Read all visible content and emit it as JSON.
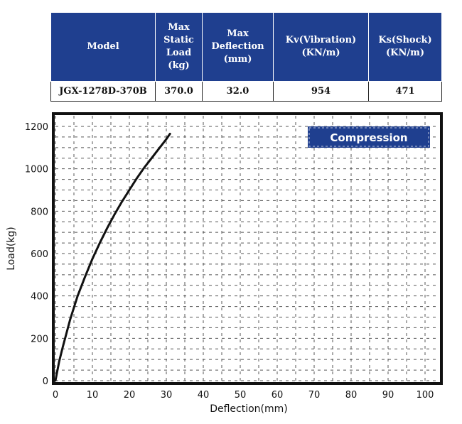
{
  "table": {
    "headers": [
      "Model",
      "Max Static Load (kg)",
      "Max Deflection (mm)",
      "Kv(Vibration) (KN/m)",
      "Ks(Shock) (KN/m)"
    ],
    "row": [
      "JGX-1278D-370B",
      "370.0",
      "32.0",
      "954",
      "471"
    ]
  },
  "chart_data": {
    "type": "line",
    "title": "",
    "xlabel": "Deflection(mm)",
    "ylabel": "Load(kg)",
    "xlim": [
      0,
      100
    ],
    "ylim": [
      0,
      1200
    ],
    "xticks": [
      0,
      10,
      20,
      30,
      40,
      50,
      60,
      70,
      80,
      90,
      100
    ],
    "yticks": [
      0,
      200,
      400,
      600,
      800,
      1000,
      1200
    ],
    "grid": true,
    "legend_placement": "top-right",
    "series": [
      {
        "name": "Compression",
        "color": "#111111",
        "x": [
          0,
          1,
          2,
          3,
          4,
          5,
          6,
          8,
          10,
          12,
          14,
          16,
          18,
          20,
          22,
          24,
          26,
          28,
          30,
          31
        ],
        "y": [
          0,
          90,
          160,
          225,
          290,
          345,
          400,
          490,
          575,
          650,
          720,
          785,
          845,
          900,
          955,
          1005,
          1050,
          1095,
          1140,
          1165
        ]
      }
    ],
    "legend_color": "#1f3f8f"
  }
}
